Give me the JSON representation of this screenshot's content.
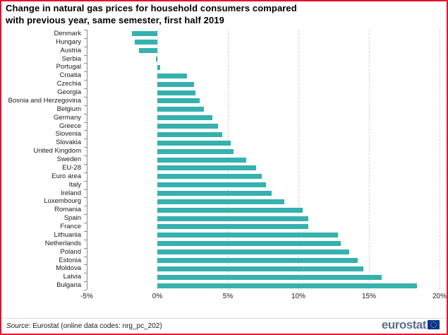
{
  "title": {
    "line1": "Change in natural gas prices for household consumers compared",
    "line2": "with previous year, same semester, first half 2019"
  },
  "footer": {
    "source_label": "Source",
    "source_text": ": Eurostat (online data codes: nrg_pc_202)",
    "logo_text": "eurostat",
    "flag_icon": "eu-flag-icon"
  },
  "colors": {
    "bar": "#35b1ae",
    "frame_border": "#e8112d",
    "gridline": "#d2d2d2",
    "axis": "#8c8c8c",
    "logo_blue": "#5b708c",
    "flag_blue": "#003399",
    "flag_stars": "#ffcc00"
  },
  "chart_data": {
    "type": "bar",
    "orientation": "horizontal",
    "title": "Change in natural gas prices for household consumers compared with previous year, same semester, first half 2019",
    "unit": "%",
    "xlim": [
      -5,
      20
    ],
    "grid": "vertical-dashed",
    "x_ticks": [
      "-5%",
      "0%",
      "5%",
      "10%",
      "15%",
      "20%"
    ],
    "x_tick_values": [
      -5,
      0,
      5,
      10,
      15,
      20
    ],
    "categories": [
      "Denmark",
      "Hungary",
      "Austria",
      "Serbia",
      "Portugal",
      "Croatia",
      "Czechia",
      "Georgia",
      "Bosnia and Herzegovina",
      "Belgium",
      "Germany",
      "Greece",
      "Slovenia",
      "Slovakia",
      "United Kingdom",
      "Sweden",
      "EU-28",
      "Euro area",
      "Italy",
      "Ireland",
      "Luxembourg",
      "Romania",
      "Spain",
      "France",
      "Lithuania",
      "Netherlands",
      "Poland",
      "Estonia",
      "Moldova",
      "Latvia",
      "Bulgaria"
    ],
    "values": [
      -1.8,
      -1.6,
      -1.3,
      -0.1,
      0.2,
      2.1,
      2.6,
      2.7,
      3.0,
      3.3,
      3.9,
      4.3,
      4.6,
      5.2,
      5.4,
      6.3,
      7.0,
      7.4,
      7.7,
      8.1,
      9.0,
      10.3,
      10.7,
      10.7,
      12.8,
      13.0,
      13.6,
      14.2,
      14.6,
      15.9,
      18.4
    ]
  }
}
